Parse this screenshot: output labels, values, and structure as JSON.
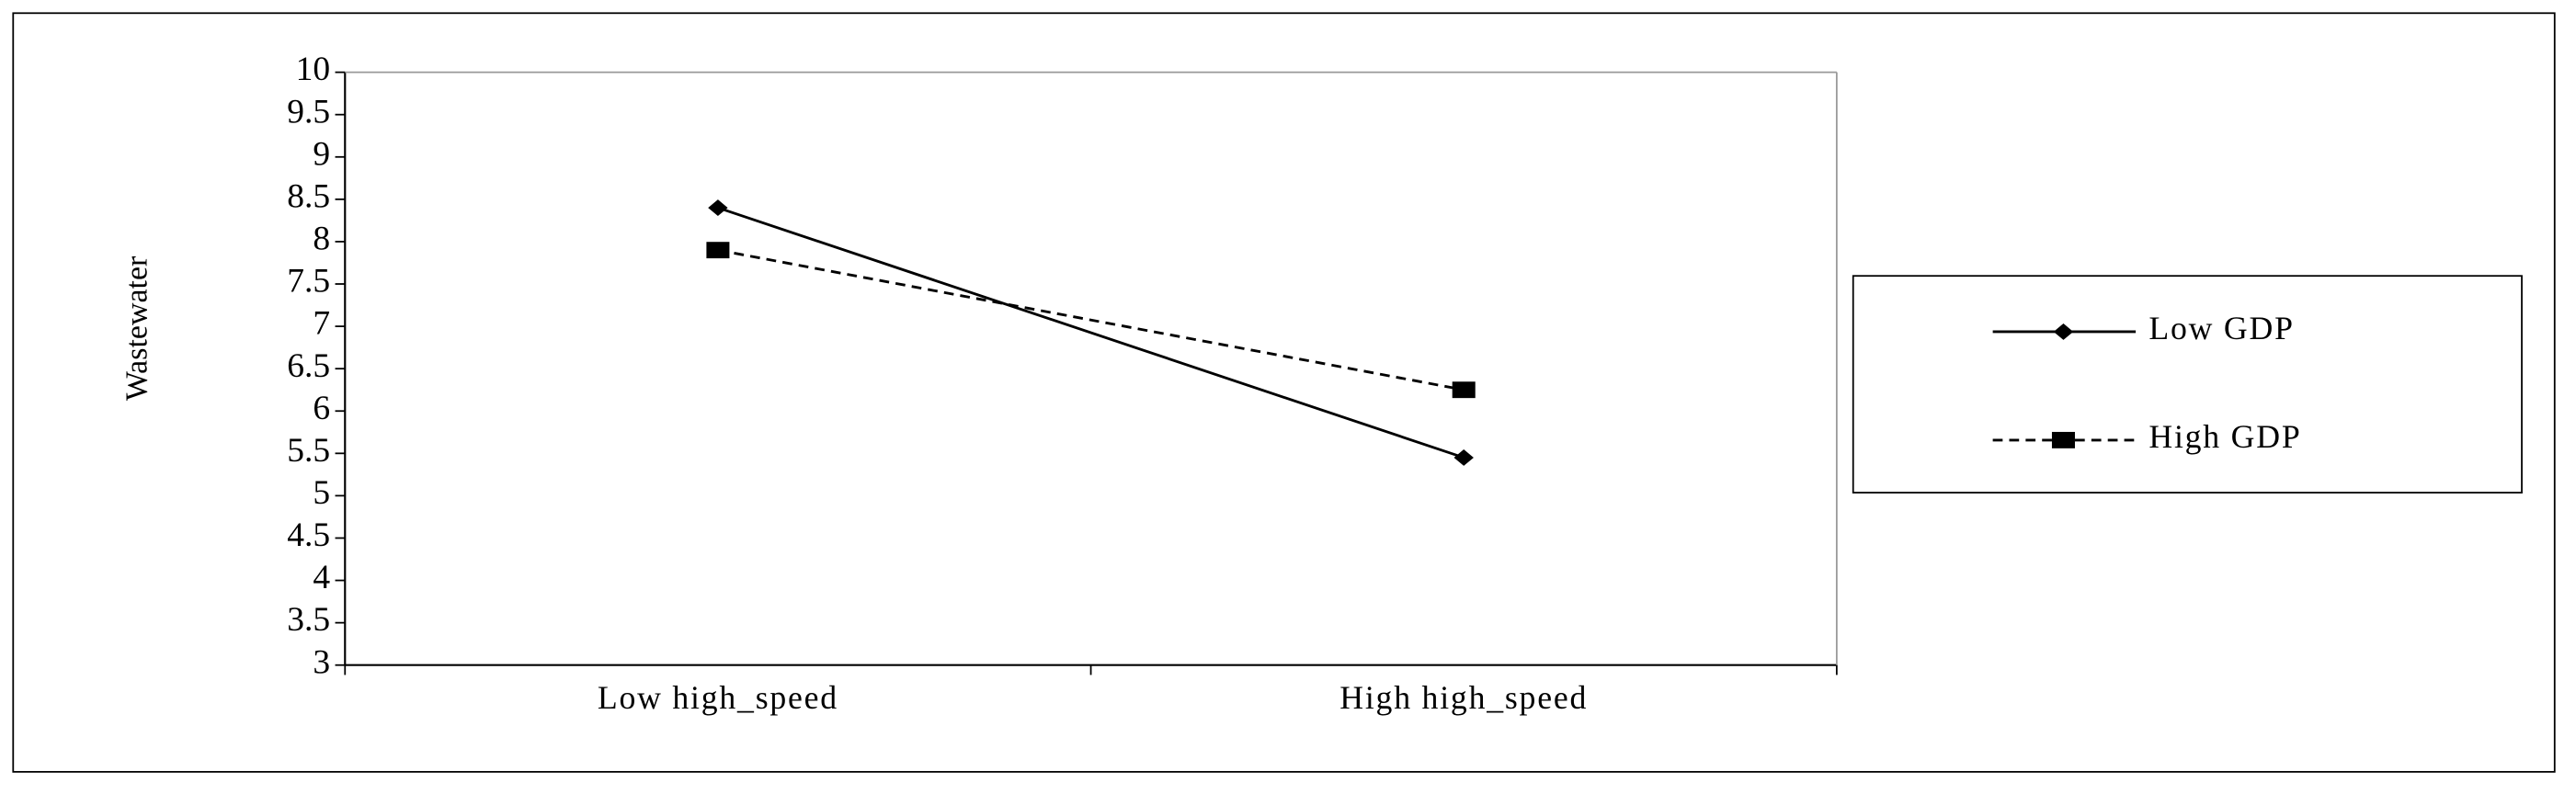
{
  "chart_data": {
    "type": "line",
    "y_label": "Wastewater",
    "categories": [
      "Low high_speed",
      "High high_speed"
    ],
    "series": [
      {
        "name": "Low GDP",
        "color": "#000000",
        "dash": "solid",
        "marker": "diamond",
        "values": [
          8.4,
          5.45
        ]
      },
      {
        "name": "High GDP",
        "color": "#000000",
        "dash": "dashed",
        "marker": "square",
        "values": [
          7.9,
          6.25
        ]
      }
    ],
    "ylim": [
      3,
      10
    ],
    "yticks": [
      3,
      3.5,
      4,
      4.5,
      5,
      5.5,
      6,
      6.5,
      7,
      7.5,
      8,
      8.5,
      9,
      9.5,
      10
    ],
    "grid": false,
    "legend": "right"
  }
}
